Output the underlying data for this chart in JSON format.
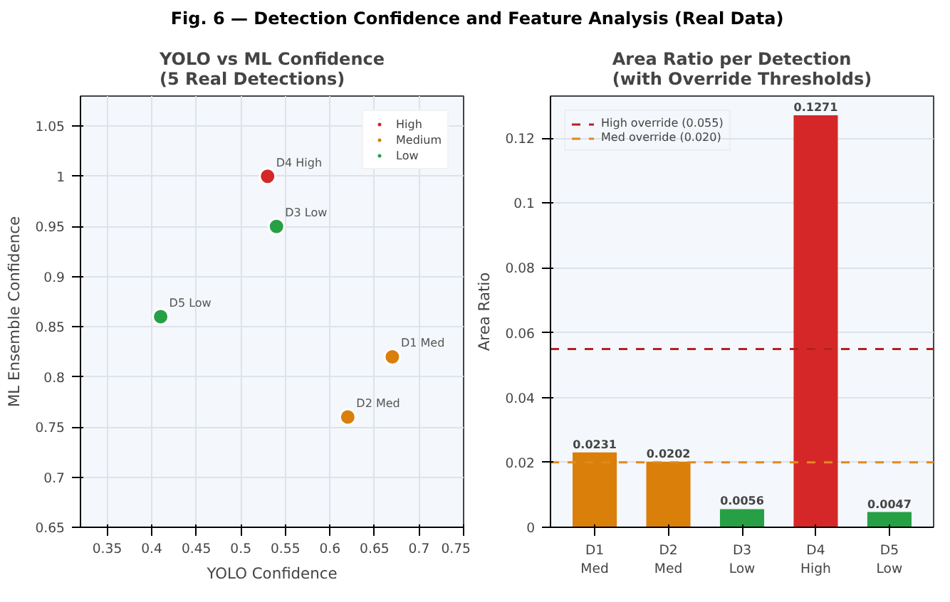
{
  "chart_data": [
    {
      "type": "scatter",
      "title": "YOLO vs ML Confidence\n(5 Real Detections)",
      "xlabel": "YOLO Confidence",
      "ylabel": "ML Ensemble Confidence",
      "annotations": [
        "Fig. 6 — Detection Confidence and Feature Analysis (Real Data)",
        {
          "text": "D4 High",
          "x": 0.53,
          "y": 1.0
        },
        {
          "text": "D3 Low",
          "x": 0.54,
          "y": 0.95
        },
        {
          "text": "D5 Low",
          "x": 0.41,
          "y": 0.86
        },
        {
          "text": "D1 Med",
          "x": 0.67,
          "y": 0.82
        },
        {
          "text": "D2 Med",
          "x": 0.62,
          "y": 0.76
        }
      ],
      "series": [
        {
          "name": "High",
          "color": "#d62728",
          "x": [
            0.53
          ],
          "values": [
            1.0
          ]
        },
        {
          "name": "Medium",
          "color": "#d97f0a",
          "x": [
            0.67,
            0.62
          ],
          "values": [
            0.82,
            0.76
          ]
        },
        {
          "name": "Low",
          "color": "#27a045",
          "x": [
            0.54,
            0.41
          ],
          "values": [
            0.95,
            0.86
          ]
        }
      ],
      "xlim": [
        0.32,
        0.75
      ],
      "ylim": [
        0.65,
        1.08
      ],
      "xticks": [
        0.35,
        0.4,
        0.45,
        0.5,
        0.55,
        0.6,
        0.65,
        0.7,
        0.75
      ],
      "yticks": [
        0.65,
        0.7,
        0.75,
        0.8,
        0.85,
        0.9,
        0.95,
        1.0,
        1.05
      ],
      "grid": true,
      "legend": "top right",
      "marker": "circle"
    },
    {
      "type": "bar",
      "title": "Area Ratio per Detection\n(with Override Thresholds)",
      "ylabel": "Area Ratio",
      "categories": [
        "D1\nMed",
        "D2\nMed",
        "D3\nLow",
        "D4\nHigh",
        "D5\nLow"
      ],
      "values": [
        0.0231,
        0.0202,
        0.0056,
        0.1271,
        0.0047
      ],
      "colors": [
        "#d97f0a",
        "#d97f0a",
        "#27a045",
        "#d62728",
        "#27a045"
      ],
      "value_labels": [
        "0.0231",
        "0.0202",
        "0.0056",
        "0.1271",
        "0.0047"
      ],
      "ref_lines": [
        {
          "axis": "y",
          "value": 0.055,
          "label": "High override (0.055)",
          "color": "#b22222",
          "line_style": "dashed"
        },
        {
          "axis": "y",
          "value": 0.02,
          "label": "Med override (0.020)",
          "color": "#e08a1e",
          "line_style": "dashed"
        }
      ],
      "ylim": [
        0,
        0.133
      ],
      "yticks": [
        0.0,
        0.02,
        0.04,
        0.06,
        0.08,
        0.1,
        0.12
      ],
      "grid": "y",
      "legend": "top left"
    }
  ]
}
